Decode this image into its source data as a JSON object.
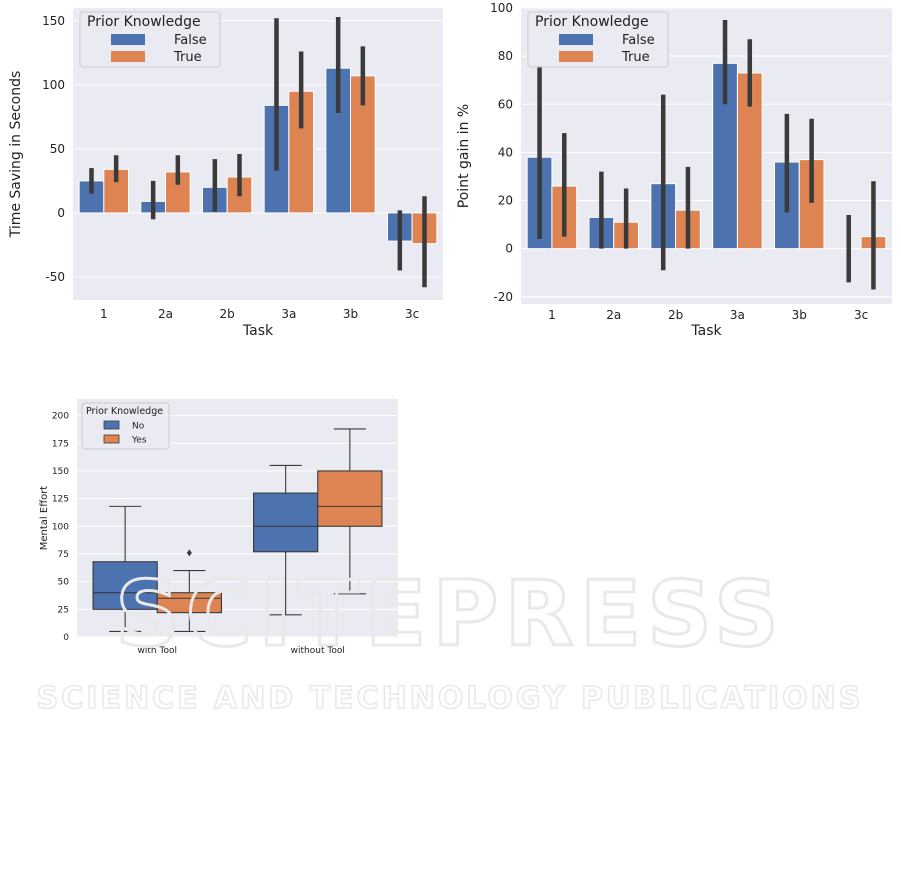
{
  "watermark": {
    "line1": "SCITEPRESS",
    "line2": "SCIENCE AND TECHNOLOGY PUBLICATIONS"
  },
  "colors": {
    "panel_bg": "#eaeaf2",
    "grid": "#ffffff",
    "blue": "#4c72b0",
    "orange": "#dd8452",
    "errbar": "#3a3a3a"
  },
  "chart_data": [
    {
      "id": "time-saving",
      "type": "bar",
      "xlabel": "Task",
      "ylabel": "Time Saving in Seconds",
      "ylim": [
        -68,
        160
      ],
      "yticks": [
        -50,
        0,
        50,
        100,
        150
      ],
      "categories": [
        "1",
        "2a",
        "2b",
        "3a",
        "3b",
        "3c"
      ],
      "legend": {
        "title": "Prior Knowledge",
        "placement": "top-left"
      },
      "series": [
        {
          "name": "False",
          "values": [
            25,
            9,
            20,
            84,
            113,
            -22
          ],
          "ci": [
            [
              15,
              35
            ],
            [
              -5,
              25
            ],
            [
              1,
              42
            ],
            [
              33,
              152
            ],
            [
              78,
              153
            ],
            [
              -45,
              2
            ]
          ]
        },
        {
          "name": "True",
          "values": [
            34,
            32,
            28,
            95,
            107,
            -24
          ],
          "ci": [
            [
              24,
              45
            ],
            [
              22,
              45
            ],
            [
              13,
              46
            ],
            [
              66,
              126
            ],
            [
              84,
              130
            ],
            [
              -58,
              13
            ]
          ]
        }
      ]
    },
    {
      "id": "point-gain",
      "type": "bar",
      "xlabel": "Task",
      "ylabel": "Point gain in %",
      "ylim": [
        -23,
        100
      ],
      "yticks": [
        -20,
        0,
        20,
        40,
        60,
        80,
        100
      ],
      "categories": [
        "1",
        "2a",
        "2b",
        "3a",
        "3b",
        "3c"
      ],
      "legend": {
        "title": "Prior Knowledge",
        "placement": "top-left"
      },
      "series": [
        {
          "name": "False",
          "values": [
            38,
            13,
            27,
            77,
            36,
            0
          ],
          "ci": [
            [
              4,
              76
            ],
            [
              0,
              32
            ],
            [
              -9,
              64
            ],
            [
              60,
              95
            ],
            [
              15,
              56
            ],
            [
              -14,
              14
            ]
          ]
        },
        {
          "name": "True",
          "values": [
            26,
            11,
            16,
            73,
            37,
            5
          ],
          "ci": [
            [
              5,
              48
            ],
            [
              0,
              25
            ],
            [
              0,
              34
            ],
            [
              59,
              87
            ],
            [
              19,
              54
            ],
            [
              -17,
              28
            ]
          ]
        }
      ]
    },
    {
      "id": "mental-effort",
      "type": "box",
      "xlabel": "",
      "ylabel": "Mental Effort",
      "ylim": [
        0,
        215
      ],
      "yticks": [
        0,
        25,
        50,
        75,
        100,
        125,
        150,
        175,
        200
      ],
      "categories": [
        "with Tool",
        "without Tool"
      ],
      "legend": {
        "title": "Prior Knowledge",
        "placement": "top-left"
      },
      "series": [
        {
          "name": "No",
          "boxes": [
            {
              "min": 5,
              "q1": 25,
              "median": 40,
              "q3": 68,
              "max": 118,
              "outliers": []
            },
            {
              "min": 20,
              "q1": 77,
              "median": 100,
              "q3": 130,
              "max": 155,
              "outliers": []
            }
          ]
        },
        {
          "name": "Yes",
          "boxes": [
            {
              "min": 5,
              "q1": 22,
              "median": 35,
              "q3": 40,
              "max": 60,
              "outliers": [
                76
              ]
            },
            {
              "min": 39,
              "q1": 100,
              "median": 118,
              "q3": 150,
              "max": 188,
              "outliers": []
            }
          ]
        }
      ]
    }
  ]
}
